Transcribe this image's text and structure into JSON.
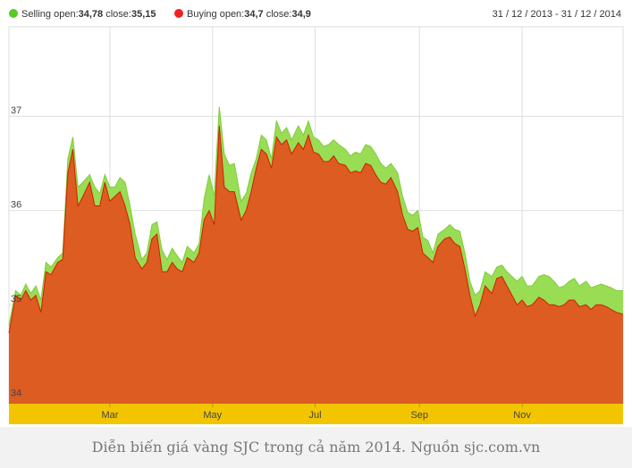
{
  "legend": {
    "selling": {
      "label": "Selling",
      "open_label": "open:",
      "open": "34,78",
      "close_label": "close:",
      "close": "35,15",
      "color": "#55cc22"
    },
    "buying": {
      "label": "Buying",
      "open_label": "open:",
      "open": "34,7",
      "close_label": "close:",
      "close": "34,9",
      "color": "#ee2222"
    }
  },
  "date_range": "31 / 12 / 2013 - 31 / 12 / 2014",
  "caption": "Diễn biến giá vàng SJC trong cả năm 2014. Nguồn sjc.com.vn",
  "colors": {
    "selling_fill": "#99dd55",
    "buying_fill": "#dd5c22",
    "buying_line": "#cc2200",
    "axis_band": "#f2c500",
    "grid": "#dddddd"
  },
  "chart_data": {
    "type": "area",
    "ylim": [
      33.95,
      37.95
    ],
    "y_ticks": [
      34,
      35,
      36,
      37
    ],
    "y_tick_labels": [
      "34",
      "35",
      "36",
      "37"
    ],
    "x_ticks": [
      "2014-03-01",
      "2014-05-01",
      "2014-07-01",
      "2014-09-01",
      "2014-11-01"
    ],
    "x_tick_labels": [
      "Mar",
      "May",
      "Jul",
      "Sep",
      "Nov"
    ],
    "xlim": [
      "2013-12-31",
      "2014-12-31"
    ],
    "grid": true,
    "series": [
      {
        "name": "Selling",
        "x": [
          "2013-12-31",
          "2014-01-04",
          "2014-01-07",
          "2014-01-10",
          "2014-01-13",
          "2014-01-16",
          "2014-01-19",
          "2014-01-22",
          "2014-01-25",
          "2014-01-29",
          "2014-02-01",
          "2014-02-04",
          "2014-02-07",
          "2014-02-10",
          "2014-02-13",
          "2014-02-17",
          "2014-02-20",
          "2014-02-23",
          "2014-02-26",
          "2014-03-01",
          "2014-03-04",
          "2014-03-07",
          "2014-03-10",
          "2014-03-13",
          "2014-03-16",
          "2014-03-20",
          "2014-03-23",
          "2014-03-26",
          "2014-03-29",
          "2014-04-01",
          "2014-04-04",
          "2014-04-07",
          "2014-04-10",
          "2014-04-13",
          "2014-04-16",
          "2014-04-20",
          "2014-04-23",
          "2014-04-26",
          "2014-04-29",
          "2014-05-02",
          "2014-05-05",
          "2014-05-08",
          "2014-05-11",
          "2014-05-14",
          "2014-05-18",
          "2014-05-21",
          "2014-05-24",
          "2014-05-27",
          "2014-05-30",
          "2014-06-02",
          "2014-06-05",
          "2014-06-08",
          "2014-06-11",
          "2014-06-14",
          "2014-06-17",
          "2014-06-21",
          "2014-06-24",
          "2014-06-27",
          "2014-06-30",
          "2014-07-03",
          "2014-07-06",
          "2014-07-09",
          "2014-07-12",
          "2014-07-15",
          "2014-07-19",
          "2014-07-22",
          "2014-07-25",
          "2014-07-28",
          "2014-07-31",
          "2014-08-03",
          "2014-08-06",
          "2014-08-09",
          "2014-08-12",
          "2014-08-15",
          "2014-08-19",
          "2014-08-22",
          "2014-08-25",
          "2014-08-28",
          "2014-08-31",
          "2014-09-03",
          "2014-09-06",
          "2014-09-09",
          "2014-09-12",
          "2014-09-16",
          "2014-09-19",
          "2014-09-22",
          "2014-09-25",
          "2014-09-28",
          "2014-10-01",
          "2014-10-04",
          "2014-10-07",
          "2014-10-10",
          "2014-10-14",
          "2014-10-17",
          "2014-10-20",
          "2014-10-23",
          "2014-10-26",
          "2014-10-29",
          "2014-11-01",
          "2014-11-04",
          "2014-11-07",
          "2014-11-11",
          "2014-11-14",
          "2014-11-17",
          "2014-11-20",
          "2014-11-23",
          "2014-11-26",
          "2014-11-29",
          "2014-12-02",
          "2014-12-05",
          "2014-12-09",
          "2014-12-12",
          "2014-12-15",
          "2014-12-18",
          "2014-12-21",
          "2014-12-24",
          "2014-12-27",
          "2014-12-31"
        ],
        "values": [
          34.78,
          35.15,
          35.1,
          35.22,
          35.12,
          35.2,
          35.05,
          35.45,
          35.4,
          35.5,
          35.55,
          36.55,
          36.78,
          36.25,
          36.3,
          36.38,
          36.25,
          36.18,
          36.38,
          36.25,
          36.25,
          36.35,
          36.3,
          36.05,
          35.75,
          35.48,
          35.55,
          35.85,
          35.88,
          35.58,
          35.48,
          35.6,
          35.52,
          35.45,
          35.62,
          35.55,
          35.65,
          36.12,
          36.38,
          36.15,
          37.1,
          36.6,
          36.48,
          36.5,
          36.1,
          36.18,
          36.4,
          36.55,
          36.8,
          36.75,
          36.55,
          36.95,
          36.82,
          36.88,
          36.75,
          36.9,
          36.8,
          36.95,
          36.78,
          36.75,
          36.68,
          36.7,
          36.75,
          36.7,
          36.65,
          36.58,
          36.62,
          36.6,
          36.7,
          36.68,
          36.6,
          36.5,
          36.45,
          36.5,
          36.4,
          36.15,
          35.98,
          35.95,
          36.0,
          35.72,
          35.68,
          35.55,
          35.75,
          35.8,
          35.85,
          35.8,
          35.78,
          35.55,
          35.25,
          35.1,
          35.15,
          35.35,
          35.3,
          35.4,
          35.42,
          35.35,
          35.3,
          35.25,
          35.3,
          35.2,
          35.2,
          35.3,
          35.32,
          35.3,
          35.25,
          35.18,
          35.2,
          35.25,
          35.28,
          35.2,
          35.25,
          35.18,
          35.2,
          35.22,
          35.2,
          35.18,
          35.15,
          35.15
        ]
      },
      {
        "name": "Buying",
        "x": [
          "2013-12-31",
          "2014-01-04",
          "2014-01-07",
          "2014-01-10",
          "2014-01-13",
          "2014-01-16",
          "2014-01-19",
          "2014-01-22",
          "2014-01-25",
          "2014-01-29",
          "2014-02-01",
          "2014-02-04",
          "2014-02-07",
          "2014-02-10",
          "2014-02-13",
          "2014-02-17",
          "2014-02-20",
          "2014-02-23",
          "2014-02-26",
          "2014-03-01",
          "2014-03-04",
          "2014-03-07",
          "2014-03-10",
          "2014-03-13",
          "2014-03-16",
          "2014-03-20",
          "2014-03-23",
          "2014-03-26",
          "2014-03-29",
          "2014-04-01",
          "2014-04-04",
          "2014-04-07",
          "2014-04-10",
          "2014-04-13",
          "2014-04-16",
          "2014-04-20",
          "2014-04-23",
          "2014-04-26",
          "2014-04-29",
          "2014-05-02",
          "2014-05-05",
          "2014-05-08",
          "2014-05-11",
          "2014-05-14",
          "2014-05-18",
          "2014-05-21",
          "2014-05-24",
          "2014-05-27",
          "2014-05-30",
          "2014-06-02",
          "2014-06-05",
          "2014-06-08",
          "2014-06-11",
          "2014-06-14",
          "2014-06-17",
          "2014-06-21",
          "2014-06-24",
          "2014-06-27",
          "2014-06-30",
          "2014-07-03",
          "2014-07-06",
          "2014-07-09",
          "2014-07-12",
          "2014-07-15",
          "2014-07-19",
          "2014-07-22",
          "2014-07-25",
          "2014-07-28",
          "2014-07-31",
          "2014-08-03",
          "2014-08-06",
          "2014-08-09",
          "2014-08-12",
          "2014-08-15",
          "2014-08-19",
          "2014-08-22",
          "2014-08-25",
          "2014-08-28",
          "2014-08-31",
          "2014-09-03",
          "2014-09-06",
          "2014-09-09",
          "2014-09-12",
          "2014-09-16",
          "2014-09-19",
          "2014-09-22",
          "2014-09-25",
          "2014-09-28",
          "2014-10-01",
          "2014-10-04",
          "2014-10-07",
          "2014-10-10",
          "2014-10-14",
          "2014-10-17",
          "2014-10-20",
          "2014-10-23",
          "2014-10-26",
          "2014-10-29",
          "2014-11-01",
          "2014-11-04",
          "2014-11-07",
          "2014-11-11",
          "2014-11-14",
          "2014-11-17",
          "2014-11-20",
          "2014-11-23",
          "2014-11-26",
          "2014-11-29",
          "2014-12-02",
          "2014-12-05",
          "2014-12-09",
          "2014-12-12",
          "2014-12-15",
          "2014-12-18",
          "2014-12-21",
          "2014-12-24",
          "2014-12-27",
          "2014-12-31"
        ],
        "values": [
          34.7,
          35.1,
          35.05,
          35.15,
          35.05,
          35.1,
          34.92,
          35.35,
          35.32,
          35.45,
          35.48,
          36.4,
          36.65,
          36.05,
          36.15,
          36.3,
          36.05,
          36.05,
          36.3,
          36.1,
          36.15,
          36.2,
          36.05,
          35.85,
          35.5,
          35.38,
          35.45,
          35.7,
          35.75,
          35.35,
          35.35,
          35.45,
          35.38,
          35.35,
          35.5,
          35.45,
          35.55,
          35.9,
          36.0,
          35.85,
          36.9,
          36.25,
          36.2,
          36.2,
          35.9,
          36.0,
          36.2,
          36.45,
          36.65,
          36.6,
          36.45,
          36.78,
          36.7,
          36.75,
          36.6,
          36.72,
          36.65,
          36.8,
          36.62,
          36.6,
          36.52,
          36.52,
          36.58,
          36.5,
          36.48,
          36.4,
          36.42,
          36.4,
          36.5,
          36.48,
          36.38,
          36.3,
          36.28,
          36.35,
          36.2,
          35.95,
          35.8,
          35.78,
          35.82,
          35.55,
          35.5,
          35.45,
          35.62,
          35.7,
          35.72,
          35.65,
          35.62,
          35.38,
          35.1,
          34.88,
          35.0,
          35.2,
          35.12,
          35.28,
          35.3,
          35.2,
          35.1,
          35.0,
          35.05,
          34.98,
          35.0,
          35.08,
          35.05,
          35.0,
          35.0,
          34.98,
          35.0,
          35.05,
          35.05,
          34.98,
          35.0,
          34.95,
          35.0,
          35.0,
          34.98,
          34.95,
          34.92,
          34.9
        ]
      }
    ]
  }
}
